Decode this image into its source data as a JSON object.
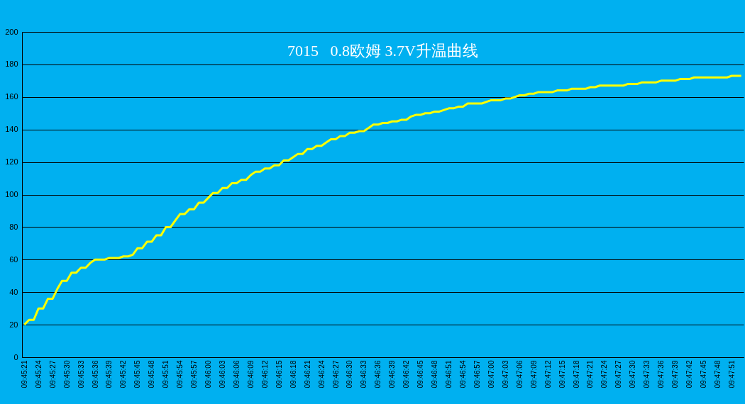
{
  "chart_data": {
    "type": "line",
    "title": "7015   0.8欧姆 3.7V升温曲线",
    "categories": [
      "09:45:21",
      null,
      null,
      "09:45:24",
      null,
      null,
      "09:45:27",
      null,
      null,
      "09:45:30",
      null,
      null,
      "09:45:33",
      null,
      null,
      "09:45:36",
      null,
      null,
      "09:45:39",
      null,
      null,
      "09:45:42",
      null,
      null,
      "09:45:45",
      null,
      null,
      "09:45:48",
      null,
      null,
      "09:45:51",
      null,
      null,
      "09:45:54",
      null,
      null,
      "09:45:57",
      null,
      null,
      "09:46:00",
      null,
      null,
      "09:46:03",
      null,
      null,
      "09:46:06",
      null,
      null,
      "09:46:09",
      null,
      null,
      "09:46:12",
      null,
      null,
      "09:46:15",
      null,
      null,
      "09:46:18",
      null,
      null,
      "09:46:21",
      null,
      null,
      "09:46:24",
      null,
      null,
      "09:46:27",
      null,
      null,
      "09:46:30",
      null,
      null,
      "09:46:33",
      null,
      null,
      "09:46:36",
      null,
      null,
      "09:46:39",
      null,
      null,
      "09:46:42",
      null,
      null,
      "09:46:45",
      null,
      null,
      "09:46:48",
      null,
      null,
      "09:46:51",
      null,
      null,
      "09:46:54",
      null,
      null,
      "09:46:57",
      null,
      null,
      "09:47:00",
      null,
      null,
      "09:47:03",
      null,
      null,
      "09:47:06",
      null,
      null,
      "09:47:09",
      null,
      null,
      "09:47:12",
      null,
      null,
      "09:47:15",
      null,
      null,
      "09:47:18",
      null,
      null,
      "09:47:21",
      null,
      null,
      "09:47:24",
      null,
      null,
      "09:47:27",
      null,
      null,
      "09:47:30",
      null,
      null,
      "09:47:33",
      null,
      null,
      "09:47:36",
      null,
      null,
      "09:47:39",
      null,
      null,
      "09:47:42",
      null,
      null,
      "09:47:45",
      null,
      null,
      "09:47:48",
      null,
      null,
      "09:47:51",
      null,
      null
    ],
    "series": [
      {
        "color": "#ffff00",
        "values": [
          20,
          23,
          23,
          30,
          30,
          36,
          36,
          42,
          47,
          47,
          52,
          52,
          55,
          55,
          58,
          60,
          60,
          60,
          61,
          61,
          61,
          62,
          62,
          63,
          67,
          67,
          71,
          71,
          75,
          75,
          80,
          80,
          84,
          88,
          88,
          91,
          91,
          95,
          95,
          98,
          101,
          101,
          104,
          104,
          107,
          107,
          109,
          109,
          112,
          114,
          114,
          116,
          116,
          118,
          118,
          121,
          121,
          123,
          125,
          125,
          128,
          128,
          130,
          130,
          132,
          134,
          134,
          136,
          136,
          138,
          138,
          139,
          139,
          141,
          143,
          143,
          144,
          144,
          145,
          145,
          146,
          146,
          148,
          149,
          149,
          150,
          150,
          151,
          151,
          152,
          153,
          153,
          154,
          154,
          156,
          156,
          156,
          156,
          157,
          158,
          158,
          158,
          159,
          159,
          160,
          161,
          161,
          162,
          162,
          163,
          163,
          163,
          163,
          164,
          164,
          164,
          165,
          165,
          165,
          165,
          166,
          166,
          167,
          167,
          167,
          167,
          167,
          167,
          168,
          168,
          168,
          169,
          169,
          169,
          169,
          170,
          170,
          170,
          170,
          171,
          171,
          171,
          172,
          172,
          172,
          172,
          172,
          172,
          172,
          172,
          173,
          173,
          173
        ]
      }
    ],
    "ylim": [
      0,
      200
    ],
    "yticks": [
      0,
      20,
      40,
      60,
      80,
      100,
      120,
      140,
      160,
      180,
      200
    ],
    "grid": "y",
    "marker": "none",
    "line_style": "solid"
  }
}
